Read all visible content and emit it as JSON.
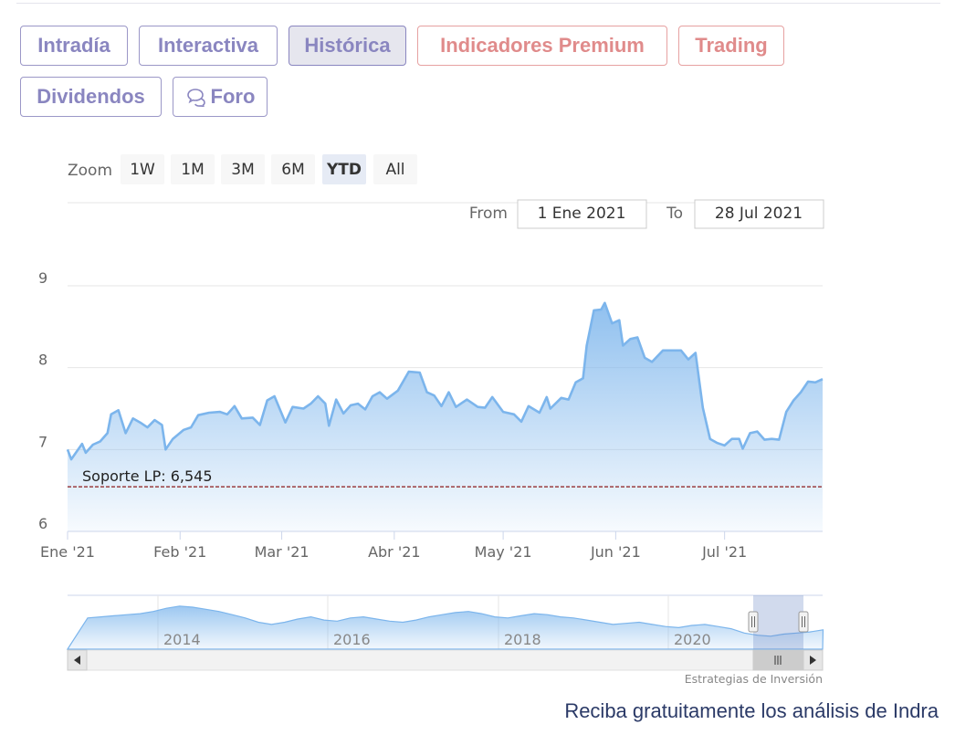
{
  "tabs": [
    {
      "label": "Intradía",
      "active": false,
      "premium": false
    },
    {
      "label": "Interactiva",
      "active": false,
      "premium": false
    },
    {
      "label": "Histórica",
      "active": true,
      "premium": false
    },
    {
      "label": "Indicadores Premium",
      "active": false,
      "premium": true
    },
    {
      "label": "Trading",
      "active": false,
      "premium": true
    },
    {
      "label": "Dividendos",
      "active": false,
      "premium": false
    },
    {
      "label": "Foro",
      "active": false,
      "premium": false,
      "icon": "chat-bubbles-icon"
    }
  ],
  "range_selector": {
    "zoom_label": "Zoom",
    "buttons": [
      "1W",
      "1M",
      "3M",
      "6M",
      "YTD",
      "All"
    ],
    "selected": "YTD",
    "from_label": "From",
    "from_value": "1 Ene 2021",
    "to_label": "To",
    "to_value": "28 Jul 2021"
  },
  "chart_data": {
    "type": "area",
    "x_start": "2021-01-01",
    "x_end": "2021-07-28",
    "ylim": [
      6,
      9
    ],
    "yticks": [
      6,
      7,
      8,
      9
    ],
    "xticks": [
      {
        "date": "2021-01-01",
        "label": "Ene '21"
      },
      {
        "date": "2021-02-01",
        "label": "Feb '21"
      },
      {
        "date": "2021-03-01",
        "label": "Mar '21"
      },
      {
        "date": "2021-04-01",
        "label": "Abr '21"
      },
      {
        "date": "2021-05-01",
        "label": "May '21"
      },
      {
        "date": "2021-06-01",
        "label": "Jun '21"
      },
      {
        "date": "2021-07-01",
        "label": "Jul '21"
      }
    ],
    "support_line": {
      "label": "Soporte LP: 6,545",
      "value": 6.545,
      "color": "#8b1a1a"
    },
    "line_color": "#7cb5ec",
    "points": [
      [
        "2021-01-01",
        7.0
      ],
      [
        "2021-01-02",
        6.88
      ],
      [
        "2021-01-05",
        7.07
      ],
      [
        "2021-01-06",
        6.96
      ],
      [
        "2021-01-08",
        7.06
      ],
      [
        "2021-01-10",
        7.1
      ],
      [
        "2021-01-12",
        7.2
      ],
      [
        "2021-01-13",
        7.43
      ],
      [
        "2021-01-15",
        7.48
      ],
      [
        "2021-01-17",
        7.2
      ],
      [
        "2021-01-19",
        7.38
      ],
      [
        "2021-01-21",
        7.33
      ],
      [
        "2021-01-23",
        7.27
      ],
      [
        "2021-01-25",
        7.36
      ],
      [
        "2021-01-27",
        7.3
      ],
      [
        "2021-01-28",
        7.0
      ],
      [
        "2021-01-30",
        7.13
      ],
      [
        "2021-02-02",
        7.24
      ],
      [
        "2021-02-04",
        7.27
      ],
      [
        "2021-02-06",
        7.42
      ],
      [
        "2021-02-09",
        7.45
      ],
      [
        "2021-02-12",
        7.46
      ],
      [
        "2021-02-14",
        7.43
      ],
      [
        "2021-02-16",
        7.53
      ],
      [
        "2021-02-18",
        7.38
      ],
      [
        "2021-02-21",
        7.39
      ],
      [
        "2021-02-23",
        7.3
      ],
      [
        "2021-02-25",
        7.6
      ],
      [
        "2021-02-27",
        7.65
      ],
      [
        "2021-03-02",
        7.33
      ],
      [
        "2021-03-04",
        7.52
      ],
      [
        "2021-03-07",
        7.5
      ],
      [
        "2021-03-09",
        7.56
      ],
      [
        "2021-03-11",
        7.65
      ],
      [
        "2021-03-13",
        7.56
      ],
      [
        "2021-03-14",
        7.29
      ],
      [
        "2021-03-16",
        7.61
      ],
      [
        "2021-03-18",
        7.44
      ],
      [
        "2021-03-20",
        7.54
      ],
      [
        "2021-03-22",
        7.56
      ],
      [
        "2021-03-24",
        7.49
      ],
      [
        "2021-03-26",
        7.65
      ],
      [
        "2021-03-28",
        7.7
      ],
      [
        "2021-03-30",
        7.62
      ],
      [
        "2021-04-02",
        7.72
      ],
      [
        "2021-04-05",
        7.95
      ],
      [
        "2021-04-08",
        7.94
      ],
      [
        "2021-04-10",
        7.7
      ],
      [
        "2021-04-12",
        7.66
      ],
      [
        "2021-04-14",
        7.53
      ],
      [
        "2021-04-16",
        7.7
      ],
      [
        "2021-04-18",
        7.52
      ],
      [
        "2021-04-21",
        7.61
      ],
      [
        "2021-04-24",
        7.52
      ],
      [
        "2021-04-26",
        7.51
      ],
      [
        "2021-04-28",
        7.64
      ],
      [
        "2021-05-01",
        7.46
      ],
      [
        "2021-05-04",
        7.43
      ],
      [
        "2021-05-06",
        7.34
      ],
      [
        "2021-05-08",
        7.53
      ],
      [
        "2021-05-11",
        7.45
      ],
      [
        "2021-05-13",
        7.64
      ],
      [
        "2021-05-14",
        7.5
      ],
      [
        "2021-05-17",
        7.63
      ],
      [
        "2021-05-19",
        7.61
      ],
      [
        "2021-05-21",
        7.82
      ],
      [
        "2021-05-23",
        7.87
      ],
      [
        "2021-05-24",
        8.27
      ],
      [
        "2021-05-26",
        8.7
      ],
      [
        "2021-05-28",
        8.71
      ],
      [
        "2021-05-29",
        8.79
      ],
      [
        "2021-05-31",
        8.54
      ],
      [
        "2021-06-02",
        8.58
      ],
      [
        "2021-06-03",
        8.27
      ],
      [
        "2021-06-05",
        8.35
      ],
      [
        "2021-06-07",
        8.37
      ],
      [
        "2021-06-09",
        8.12
      ],
      [
        "2021-06-11",
        8.07
      ],
      [
        "2021-06-14",
        8.21
      ],
      [
        "2021-06-16",
        8.21
      ],
      [
        "2021-06-19",
        8.21
      ],
      [
        "2021-06-21",
        8.1
      ],
      [
        "2021-06-23",
        8.18
      ],
      [
        "2021-06-25",
        7.51
      ],
      [
        "2021-06-27",
        7.13
      ],
      [
        "2021-06-29",
        7.08
      ],
      [
        "2021-07-01",
        7.05
      ],
      [
        "2021-07-03",
        7.13
      ],
      [
        "2021-07-05",
        7.13
      ],
      [
        "2021-07-06",
        7.01
      ],
      [
        "2021-07-08",
        7.2
      ],
      [
        "2021-07-10",
        7.22
      ],
      [
        "2021-07-12",
        7.12
      ],
      [
        "2021-07-14",
        7.13
      ],
      [
        "2021-07-16",
        7.12
      ],
      [
        "2021-07-18",
        7.46
      ],
      [
        "2021-07-20",
        7.6
      ],
      [
        "2021-07-22",
        7.7
      ],
      [
        "2021-07-24",
        7.83
      ],
      [
        "2021-07-26",
        7.82
      ],
      [
        "2021-07-28",
        7.86
      ]
    ]
  },
  "navigator": {
    "year_labels": [
      "2014",
      "2016",
      "2018",
      "2020"
    ],
    "credit": "Estrategias de Inversión"
  },
  "footer": {
    "text": "Reciba gratuitamente los análisis de Indra"
  }
}
